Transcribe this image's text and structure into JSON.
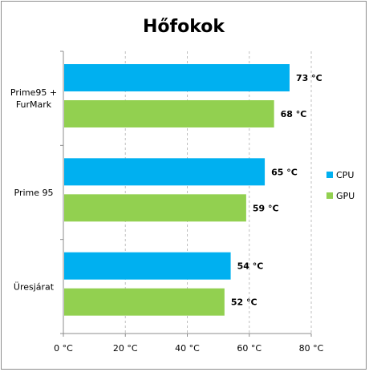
{
  "chart_data": {
    "type": "bar",
    "orientation": "horizontal",
    "title": "Hőfokok",
    "categories": [
      "Prime95 +\nFurMark",
      "Prime 95",
      "Üresjárat"
    ],
    "series": [
      {
        "name": "CPU",
        "color": "#00b0f0",
        "values": [
          73,
          65,
          54
        ],
        "labels": [
          "73 °C",
          "65 °C",
          "54 °C"
        ]
      },
      {
        "name": "GPU",
        "color": "#92d050",
        "values": [
          68,
          59,
          52
        ],
        "labels": [
          "68 °C",
          "59 °C",
          "52 °C"
        ]
      }
    ],
    "xlim": [
      0,
      80
    ],
    "xticks": [
      0,
      20,
      40,
      60,
      80
    ],
    "xtick_labels": [
      "0 °C",
      "20 °C",
      "40 °C",
      "60 °C",
      "80 °C"
    ],
    "xlabel": "",
    "ylabel": "",
    "grid": "vertical dashed",
    "legend_position": "right"
  }
}
